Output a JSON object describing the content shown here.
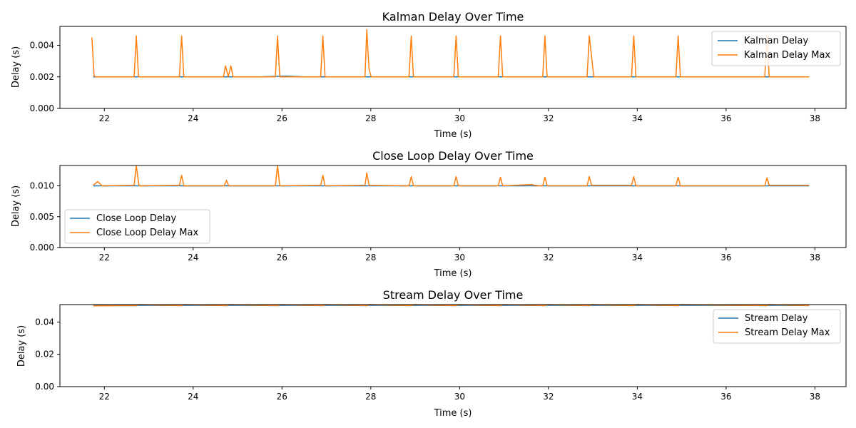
{
  "chart_data": [
    {
      "type": "line",
      "title": "Kalman Delay Over Time",
      "xlabel": "Time (s)",
      "ylabel": "Delay (s)",
      "xlim": [
        21.0,
        38.7
      ],
      "ylim": [
        0.0,
        0.0052
      ],
      "xticks": [
        22,
        24,
        26,
        28,
        30,
        32,
        34,
        36,
        38
      ],
      "yticks": [
        0.0,
        0.002,
        0.004
      ],
      "ytick_labels": [
        "0.000",
        "0.002",
        "0.004"
      ],
      "legend": "top-right",
      "series": [
        {
          "name": "Kalman Delay",
          "color": "#1f77b4",
          "x": [
            21.75,
            22.8,
            23.5,
            24.7,
            24.85,
            25.5,
            26.1,
            26.5,
            26.75,
            27.3,
            27.6,
            28.7,
            29.7,
            30.3,
            31.5,
            31.7,
            32.7,
            33.5,
            34.5,
            35.5,
            36.2,
            36.9,
            37.87
          ],
          "y": [
            0.002,
            0.002,
            0.002,
            0.002,
            0.002,
            0.002,
            0.00205,
            0.002,
            0.002,
            0.002,
            0.002,
            0.002,
            0.002,
            0.002,
            0.002,
            0.002,
            0.002,
            0.002,
            0.002,
            0.002,
            0.002,
            0.002,
            0.002
          ]
        },
        {
          "name": "Kalman Delay Max",
          "color": "#ff7f0e",
          "x": [
            21.72,
            21.77,
            21.82,
            22.67,
            22.72,
            22.77,
            23.69,
            23.74,
            23.79,
            24.68,
            24.73,
            24.79,
            24.85,
            24.9,
            25.85,
            25.9,
            25.95,
            26.87,
            26.92,
            26.97,
            27.87,
            27.91,
            27.96,
            28.01,
            28.86,
            28.91,
            28.96,
            29.87,
            29.92,
            29.97,
            30.87,
            30.92,
            30.97,
            31.87,
            31.92,
            31.97,
            32.87,
            32.92,
            33.02,
            33.87,
            33.92,
            33.97,
            34.87,
            34.92,
            34.97,
            36.87,
            36.92,
            36.97,
            37.87
          ],
          "y": [
            0.0045,
            0.00205,
            0.002,
            0.002,
            0.0046,
            0.002,
            0.002,
            0.0046,
            0.002,
            0.002,
            0.0027,
            0.002,
            0.0027,
            0.002,
            0.002,
            0.0046,
            0.002,
            0.002,
            0.0046,
            0.002,
            0.002,
            0.005,
            0.0025,
            0.002,
            0.002,
            0.0046,
            0.002,
            0.002,
            0.0046,
            0.002,
            0.002,
            0.0046,
            0.002,
            0.002,
            0.0046,
            0.002,
            0.002,
            0.0046,
            0.002,
            0.002,
            0.0046,
            0.002,
            0.002,
            0.0046,
            0.002,
            0.002,
            0.0046,
            0.002,
            0.002
          ]
        }
      ]
    },
    {
      "type": "line",
      "title": "Close Loop Delay Over Time",
      "xlabel": "Time (s)",
      "ylabel": "Delay (s)",
      "xlim": [
        21.0,
        38.7
      ],
      "ylim": [
        0.0,
        0.0133
      ],
      "xticks": [
        22,
        24,
        26,
        28,
        30,
        32,
        34,
        36,
        38
      ],
      "yticks": [
        0.0,
        0.005,
        0.01
      ],
      "ytick_labels": [
        "0.000",
        "0.005",
        "0.010"
      ],
      "legend": "lower-left",
      "series": [
        {
          "name": "Close Loop Delay",
          "color": "#1f77b4",
          "x": [
            21.75,
            37.87
          ],
          "y": [
            0.01,
            0.01
          ]
        },
        {
          "name": "Close Loop Delay Max",
          "color": "#ff7f0e",
          "x": [
            21.75,
            21.85,
            21.95,
            22.67,
            22.72,
            22.78,
            23.69,
            23.74,
            23.79,
            24.7,
            24.75,
            24.8,
            25.85,
            25.9,
            25.95,
            26.87,
            26.92,
            26.97,
            27.87,
            27.91,
            27.96,
            28.86,
            28.91,
            28.96,
            29.87,
            29.92,
            29.97,
            30.87,
            30.92,
            30.97,
            31.6,
            31.8,
            31.87,
            31.92,
            31.97,
            32.87,
            32.92,
            32.97,
            33.87,
            33.92,
            33.97,
            34.87,
            34.92,
            34.97,
            36.87,
            36.92,
            36.97,
            37.87
          ],
          "y": [
            0.0101,
            0.0107,
            0.01,
            0.0101,
            0.0133,
            0.01,
            0.0101,
            0.0117,
            0.01,
            0.01,
            0.0109,
            0.01,
            0.01,
            0.0133,
            0.01,
            0.0101,
            0.0117,
            0.01,
            0.0101,
            0.0121,
            0.0101,
            0.01,
            0.0115,
            0.01,
            0.01,
            0.0115,
            0.01,
            0.01,
            0.0114,
            0.01,
            0.0102,
            0.01,
            0.01,
            0.0114,
            0.01,
            0.01,
            0.0115,
            0.0101,
            0.0101,
            0.0115,
            0.01,
            0.01,
            0.0114,
            0.01,
            0.01,
            0.0113,
            0.0101,
            0.0101
          ]
        }
      ]
    },
    {
      "type": "line",
      "title": "Stream Delay Over Time",
      "xlabel": "Time (s)",
      "ylabel": "Delay (s)",
      "xlim": [
        21.0,
        38.7
      ],
      "ylim": [
        0.0,
        0.0508
      ],
      "xticks": [
        22,
        24,
        26,
        28,
        30,
        32,
        34,
        36,
        38
      ],
      "yticks": [
        0.0,
        0.02,
        0.04
      ],
      "ytick_labels": [
        "0.00",
        "0.02",
        "0.04"
      ],
      "legend": "top-right",
      "series": [
        {
          "name": "Stream Delay",
          "color": "#1f77b4",
          "x": [
            21.75,
            22.72,
            22.77,
            23.74,
            23.79,
            24.75,
            24.8,
            25.9,
            25.95,
            26.92,
            26.97,
            27.91,
            27.96,
            28.91,
            28.96,
            29.92,
            29.97,
            30.92,
            30.97,
            31.92,
            31.97,
            32.92,
            32.97,
            33.92,
            33.97,
            34.92,
            34.97,
            36.92,
            36.97,
            37.87
          ],
          "y": [
            0.0502,
            0.0502,
            0.0504,
            0.0502,
            0.0504,
            0.0502,
            0.0504,
            0.0502,
            0.0504,
            0.0502,
            0.0504,
            0.0502,
            0.0504,
            0.0502,
            0.0504,
            0.0502,
            0.0504,
            0.0502,
            0.0504,
            0.0502,
            0.0504,
            0.0502,
            0.0504,
            0.0502,
            0.0504,
            0.0502,
            0.0504,
            0.0502,
            0.0504,
            0.0502
          ]
        },
        {
          "name": "Stream Delay Max",
          "color": "#ff7f0e",
          "x": [
            21.75,
            22.72,
            22.77,
            23.74,
            23.79,
            24.75,
            24.8,
            25.9,
            25.95,
            26.92,
            26.97,
            27.91,
            27.96,
            28.91,
            28.96,
            29.92,
            29.97,
            30.92,
            30.97,
            31.92,
            31.97,
            32.92,
            32.97,
            33.92,
            33.97,
            34.92,
            34.97,
            36.92,
            36.97,
            37.87
          ],
          "y": [
            0.05,
            0.0502,
            0.0508,
            0.0502,
            0.0508,
            0.0502,
            0.0508,
            0.0502,
            0.0508,
            0.0502,
            0.0508,
            0.0502,
            0.0508,
            0.0502,
            0.0508,
            0.0502,
            0.0508,
            0.0502,
            0.0508,
            0.0502,
            0.0508,
            0.0502,
            0.0508,
            0.0502,
            0.0508,
            0.0502,
            0.0508,
            0.0502,
            0.0508,
            0.0502
          ]
        }
      ]
    }
  ]
}
